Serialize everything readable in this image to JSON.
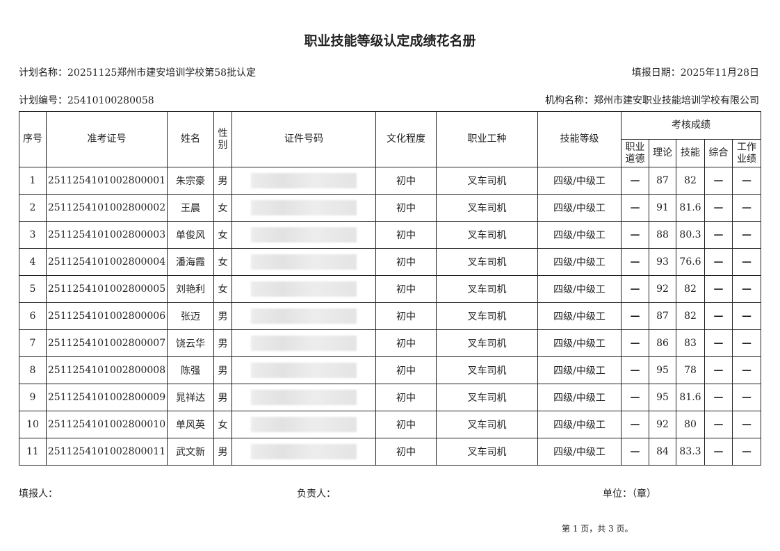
{
  "title": "职业技能等级认定成绩花名册",
  "plan_name": "计划名称：20251125郑州市建安培训学校第58批认定",
  "report_date": "填报日期：2025年11月28日",
  "plan_no": "计划编号：25410100280058",
  "org_name": "机构名称：郑州市建安职业技能培训学校有限公司",
  "headers": {
    "seq": "序号",
    "exam_no": "准考证号",
    "name": "姓名",
    "gender": "性别",
    "id_no": "证件号码",
    "education": "文化程度",
    "occupation": "职业工种",
    "level": "技能等级",
    "scores": "考核成绩",
    "ethics": "职业道德",
    "theory": "理论",
    "skill": "技能",
    "overall": "综合",
    "work": "工作业绩"
  },
  "rows": [
    {
      "seq": "1",
      "exam_no": "2511254101002800001",
      "name": "朱宗豪",
      "gender": "男",
      "education": "初中",
      "occupation": "叉车司机",
      "level": "四级/中级工",
      "ethics": "—",
      "theory": "87",
      "skill": "82",
      "overall": "—",
      "work": "—"
    },
    {
      "seq": "2",
      "exam_no": "2511254101002800002",
      "name": "王晨",
      "gender": "女",
      "education": "初中",
      "occupation": "叉车司机",
      "level": "四级/中级工",
      "ethics": "—",
      "theory": "91",
      "skill": "81.6",
      "overall": "—",
      "work": "—"
    },
    {
      "seq": "3",
      "exam_no": "2511254101002800003",
      "name": "单俊风",
      "gender": "女",
      "education": "初中",
      "occupation": "叉车司机",
      "level": "四级/中级工",
      "ethics": "—",
      "theory": "88",
      "skill": "80.3",
      "overall": "—",
      "work": "—"
    },
    {
      "seq": "4",
      "exam_no": "2511254101002800004",
      "name": "潘海霞",
      "gender": "女",
      "education": "初中",
      "occupation": "叉车司机",
      "level": "四级/中级工",
      "ethics": "—",
      "theory": "93",
      "skill": "76.6",
      "overall": "—",
      "work": "—"
    },
    {
      "seq": "5",
      "exam_no": "2511254101002800005",
      "name": "刘艳利",
      "gender": "女",
      "education": "初中",
      "occupation": "叉车司机",
      "level": "四级/中级工",
      "ethics": "—",
      "theory": "92",
      "skill": "82",
      "overall": "—",
      "work": "—"
    },
    {
      "seq": "6",
      "exam_no": "2511254101002800006",
      "name": "张迈",
      "gender": "男",
      "education": "初中",
      "occupation": "叉车司机",
      "level": "四级/中级工",
      "ethics": "—",
      "theory": "87",
      "skill": "82",
      "overall": "—",
      "work": "—"
    },
    {
      "seq": "7",
      "exam_no": "2511254101002800007",
      "name": "饶云华",
      "gender": "男",
      "education": "初中",
      "occupation": "叉车司机",
      "level": "四级/中级工",
      "ethics": "—",
      "theory": "86",
      "skill": "83",
      "overall": "—",
      "work": "—"
    },
    {
      "seq": "8",
      "exam_no": "2511254101002800008",
      "name": "陈强",
      "gender": "男",
      "education": "初中",
      "occupation": "叉车司机",
      "level": "四级/中级工",
      "ethics": "—",
      "theory": "95",
      "skill": "78",
      "overall": "—",
      "work": "—"
    },
    {
      "seq": "9",
      "exam_no": "2511254101002800009",
      "name": "晁祥达",
      "gender": "男",
      "education": "初中",
      "occupation": "叉车司机",
      "level": "四级/中级工",
      "ethics": "—",
      "theory": "95",
      "skill": "81.6",
      "overall": "—",
      "work": "—"
    },
    {
      "seq": "10",
      "exam_no": "2511254101002800010",
      "name": "单风英",
      "gender": "女",
      "education": "初中",
      "occupation": "叉车司机",
      "level": "四级/中级工",
      "ethics": "—",
      "theory": "92",
      "skill": "80",
      "overall": "—",
      "work": "—"
    },
    {
      "seq": "11",
      "exam_no": "2511254101002800011",
      "name": "武文新",
      "gender": "男",
      "education": "初中",
      "occupation": "叉车司机",
      "level": "四级/中级工",
      "ethics": "—",
      "theory": "84",
      "skill": "83.3",
      "overall": "—",
      "work": "—"
    }
  ],
  "footer": {
    "filler": "填报人：",
    "responsible": "负责人：",
    "unit": "单位：（章）",
    "page": "第 1 页，共 3 页。"
  }
}
